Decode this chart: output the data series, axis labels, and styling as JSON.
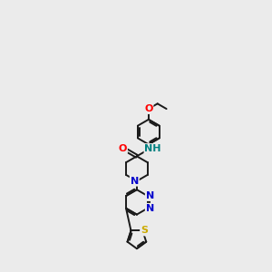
{
  "background_color": "#ebebeb",
  "bond_color": "#1a1a1a",
  "atom_colors": {
    "O": "#ff0000",
    "N": "#0000cc",
    "S": "#ccaa00",
    "NH": "#008080",
    "C": "#1a1a1a"
  },
  "figsize": [
    3.0,
    3.0
  ],
  "dpi": 100,
  "xlim": [
    0,
    10
  ],
  "ylim": [
    0,
    17
  ]
}
